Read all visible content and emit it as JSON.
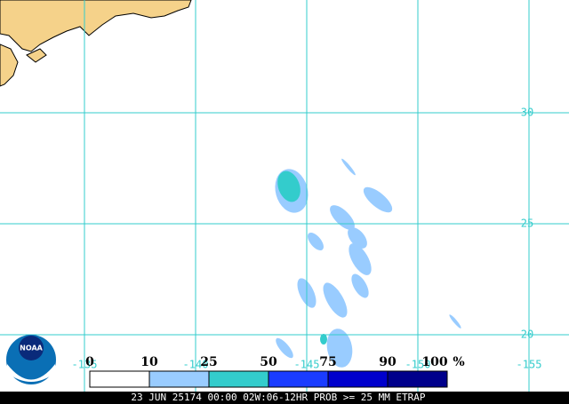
{
  "map": {
    "lat_lines": [
      30,
      25,
      20
    ],
    "lon_lines": [
      -135,
      -140,
      -145,
      -150,
      -155
    ],
    "legend": {
      "ticks": [
        0,
        10,
        25,
        50,
        75,
        90,
        100
      ],
      "unit": "%",
      "colors": [
        "#ffffff",
        "#99ccff",
        "#33cccc",
        "#1a3cff",
        "#0000cc",
        "#00008b"
      ]
    },
    "logo_text": "NOAA",
    "caption": "23 JUN 25174 00:00 02W:06-12HR PROB >= 25 MM ETRAP"
  }
}
